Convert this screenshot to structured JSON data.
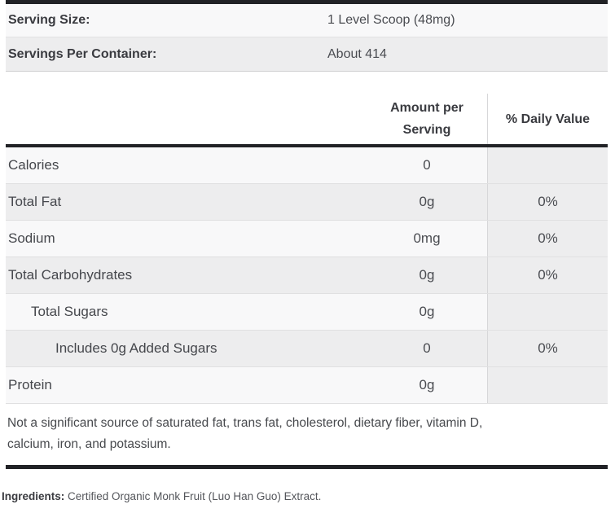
{
  "serving_info": {
    "rows": [
      {
        "label": "Serving Size:",
        "value": "1 Level Scoop (48mg)"
      },
      {
        "label": "Servings Per Container:",
        "value": "About 414"
      }
    ]
  },
  "facts": {
    "header": {
      "amount": "Amount per Serving",
      "daily_value": "% Daily Value"
    },
    "rows": [
      {
        "label": "Calories",
        "amount": "0",
        "dv": ""
      },
      {
        "label": "Total Fat",
        "amount": "0g",
        "dv": "0%"
      },
      {
        "label": "Sodium",
        "amount": "0mg",
        "dv": "0%"
      },
      {
        "label": "Total Carbohydrates",
        "amount": "0g",
        "dv": "0%"
      },
      {
        "label": "Total Sugars",
        "amount": "0g",
        "dv": ""
      },
      {
        "label": "Includes 0g Added Sugars",
        "amount": "0",
        "dv": "0%"
      },
      {
        "label": "Protein",
        "amount": "0g",
        "dv": ""
      }
    ],
    "footnote_line1": "Not a significant source of saturated fat, trans fat, cholesterol, dietary fiber, vitamin D,",
    "footnote_line2": "calcium, iron, and potassium."
  },
  "ingredients": {
    "label": "Ingredients:",
    "value": "Certified Organic Monk Fruit (Luo Han Guo) Extract."
  },
  "colors": {
    "bar_black": "#212226",
    "row_light": "#f8f8f9",
    "row_gray": "#ededee",
    "divider": "#d7d7d9",
    "row_border": "#e0e0e1",
    "text_dark": "#3a3b40",
    "text_body": "#45474c"
  }
}
